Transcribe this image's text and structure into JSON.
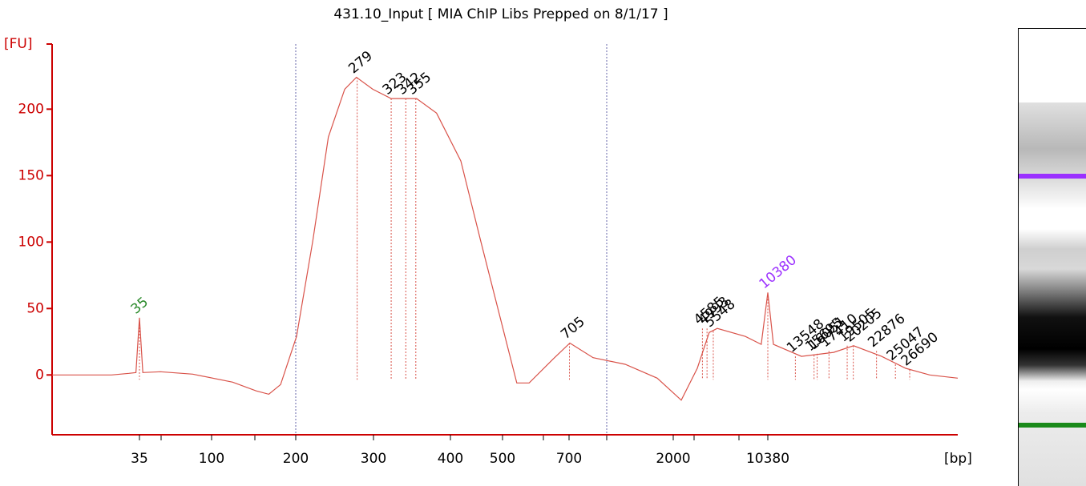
{
  "chart_data": {
    "type": "line",
    "title": "431.10_Input  [ MIA ChIP Libs Prepped on 8/1/17 ]",
    "y_label": "[FU]",
    "x_label": "[bp]",
    "color": "#d9534a",
    "axis_color": "#cc0000",
    "xlim": [
      10,
      32214
    ],
    "xticks": [
      35,
      100,
      200,
      300,
      400,
      500,
      700,
      2000,
      10380
    ],
    "ylim": [
      -45,
      249
    ],
    "yticks": [
      0,
      50,
      100,
      150,
      200
    ],
    "x": [
      10,
      27,
      32,
      34,
      35,
      38,
      54,
      83,
      125,
      153,
      168,
      182,
      201,
      222,
      242,
      263,
      278,
      299,
      323,
      356,
      382,
      420,
      458,
      497,
      543,
      580,
      652,
      710,
      1000,
      1400,
      1800,
      2710,
      4130,
      5190,
      5900,
      8390,
      9800,
      10380,
      11025,
      14250,
      17940,
      20240,
      23460,
      26230,
      28990,
      32214
    ],
    "values": [
      0,
      0,
      1.2,
      1.8,
      43,
      1.8,
      2.4,
      0.6,
      -5.4,
      -12,
      -14.5,
      -7.2,
      29,
      101,
      179,
      215,
      224,
      215,
      208,
      208,
      197,
      161,
      101,
      41,
      -6,
      -6,
      12,
      24,
      13,
      8,
      -2.4,
      -19,
      5,
      32,
      35,
      29,
      23,
      62,
      23,
      14,
      17,
      22,
      14,
      5,
      0,
      -2.4
    ],
    "peaks": [
      {
        "size": 35,
        "value": 43,
        "color": "#2a8a2a"
      },
      {
        "size": 279,
        "value": 224,
        "color": "#000000"
      },
      {
        "size": 323,
        "value": 208,
        "color": "#000000"
      },
      {
        "size": 342,
        "value": 208,
        "color": "#000000"
      },
      {
        "size": 355,
        "value": 208,
        "color": "#000000"
      },
      {
        "size": 705,
        "value": 24,
        "color": "#000000"
      },
      {
        "size": 4585,
        "value": 35,
        "color": "#000000"
      },
      {
        "size": 4993,
        "value": 35,
        "color": "#000000"
      },
      {
        "size": 5548,
        "value": 33,
        "color": "#000000"
      },
      {
        "size": 10380,
        "value": 62,
        "color": "#9b30ff"
      },
      {
        "size": 13548,
        "value": 14,
        "color": "#000000"
      },
      {
        "size": 15695,
        "value": 15,
        "color": "#000000"
      },
      {
        "size": 16051,
        "value": 16,
        "color": "#000000"
      },
      {
        "size": 17410,
        "value": 18,
        "color": "#000000"
      },
      {
        "size": 19505,
        "value": 22,
        "color": "#000000"
      },
      {
        "size": 20205,
        "value": 22,
        "color": "#000000"
      },
      {
        "size": 22876,
        "value": 18,
        "color": "#000000"
      },
      {
        "size": 25047,
        "value": 8,
        "color": "#000000"
      },
      {
        "size": 26690,
        "value": 4,
        "color": "#000000"
      }
    ]
  }
}
